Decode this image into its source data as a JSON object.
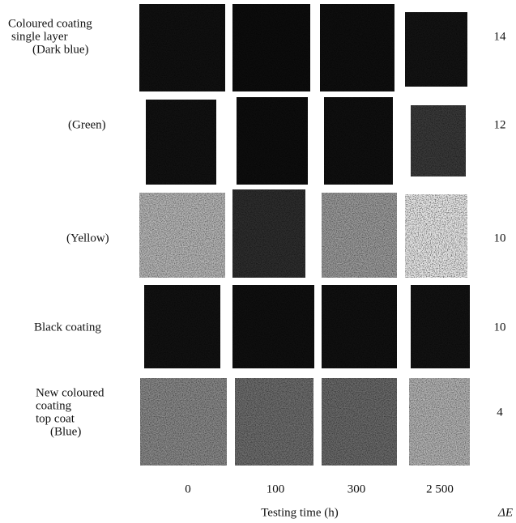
{
  "rows": [
    {
      "label": [
        "Coloured coating",
        "single layer",
        "(Dark blue)"
      ],
      "delta_e": 14
    },
    {
      "label": [
        "(Green)"
      ],
      "delta_e": 12
    },
    {
      "label": [
        "(Yellow)"
      ],
      "delta_e": 10
    },
    {
      "label": [
        "Black coating"
      ],
      "delta_e": 10
    },
    {
      "label": [
        "New coloured",
        "coating",
        "top coat",
        "(Blue)"
      ],
      "delta_e": 4
    }
  ],
  "columns": [
    "0",
    "100",
    "300",
    "2 500"
  ],
  "x_axis_label": "Testing time (h)",
  "delta_e_label": "ΔE"
}
